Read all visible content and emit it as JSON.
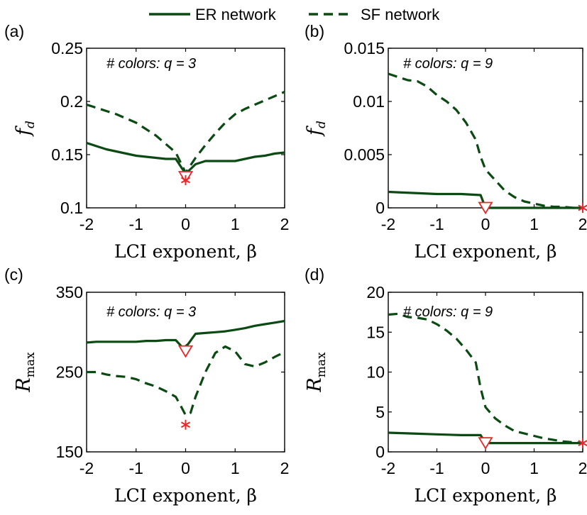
{
  "legend": {
    "er_label": "ER network",
    "sf_label": "SF network",
    "line_color": "#0b4a12",
    "marker_color": "#e8282b"
  },
  "chart_data": [
    {
      "panel": "(a)",
      "type": "line",
      "annotation": "# colors: q = 3",
      "ylabel_main": "f",
      "ylabel_sub": "d",
      "xlabel": "LCI exponent, β",
      "xlim": [
        -2,
        2
      ],
      "ylim": [
        0.1,
        0.25
      ],
      "xticks": [
        -2,
        -1,
        0,
        1,
        2
      ],
      "xtick_labels": [
        "-2",
        "-1",
        "0",
        "1",
        "2"
      ],
      "yticks": [
        0.1,
        0.15,
        0.2,
        0.25
      ],
      "ytick_labels": [
        "0.1",
        "0.15",
        "0.2",
        "0.25"
      ],
      "series": [
        {
          "name": "ER network",
          "style": "solid",
          "x": [
            -2,
            -1.8,
            -1.6,
            -1.4,
            -1.2,
            -1.0,
            -0.8,
            -0.6,
            -0.4,
            -0.2,
            0,
            0.2,
            0.4,
            0.6,
            0.8,
            1.0,
            1.2,
            1.4,
            1.6,
            1.8,
            2.0
          ],
          "y": [
            0.161,
            0.158,
            0.155,
            0.153,
            0.151,
            0.149,
            0.148,
            0.147,
            0.146,
            0.146,
            0.132,
            0.141,
            0.144,
            0.144,
            0.144,
            0.144,
            0.146,
            0.148,
            0.149,
            0.151,
            0.152
          ]
        },
        {
          "name": "SF network",
          "style": "dashed",
          "x": [
            -2,
            -1.8,
            -1.6,
            -1.4,
            -1.2,
            -1.0,
            -0.8,
            -0.6,
            -0.4,
            -0.2,
            0,
            0.2,
            0.4,
            0.6,
            0.8,
            1.0,
            1.2,
            1.4,
            1.6,
            1.8,
            2.0
          ],
          "y": [
            0.197,
            0.194,
            0.191,
            0.188,
            0.184,
            0.18,
            0.174,
            0.168,
            0.16,
            0.152,
            0.133,
            0.147,
            0.159,
            0.17,
            0.18,
            0.188,
            0.193,
            0.197,
            0.201,
            0.205,
            0.209
          ]
        }
      ],
      "markers": [
        {
          "type": "triangle",
          "x": 0,
          "y": 0.129
        },
        {
          "type": "star",
          "x": 0,
          "y": 0.126
        }
      ]
    },
    {
      "panel": "(b)",
      "type": "line",
      "annotation": "# colors: q = 9",
      "ylabel_main": "f",
      "ylabel_sub": "d",
      "xlabel": "LCI exponent, β",
      "xlim": [
        -2,
        2
      ],
      "ylim": [
        0,
        0.015
      ],
      "xticks": [
        -2,
        -1,
        0,
        1,
        2
      ],
      "xtick_labels": [
        "-2",
        "-1",
        "0",
        "1",
        "2"
      ],
      "yticks": [
        0,
        0.005,
        0.01,
        0.015
      ],
      "ytick_labels": [
        "0",
        "0.005",
        "0.01",
        "0.015"
      ],
      "series": [
        {
          "name": "ER network",
          "style": "solid",
          "x": [
            -2,
            -1.5,
            -1.0,
            -0.5,
            -0.1,
            0,
            0.5,
            1.0,
            1.5,
            2.0
          ],
          "y": [
            0.0015,
            0.0014,
            0.0013,
            0.0013,
            0.0012,
            0.0,
            0.0,
            0.0,
            0.0,
            0.0
          ]
        },
        {
          "name": "SF network",
          "style": "dashed",
          "x": [
            -2,
            -1.8,
            -1.6,
            -1.4,
            -1.2,
            -1.0,
            -0.8,
            -0.6,
            -0.4,
            -0.2,
            -0.1,
            0,
            0.2,
            0.4,
            0.6,
            0.8,
            1.0,
            1.2,
            1.4,
            1.6,
            1.8,
            2.0
          ],
          "y": [
            0.0126,
            0.0123,
            0.012,
            0.0119,
            0.0114,
            0.0106,
            0.01,
            0.0092,
            0.008,
            0.0064,
            0.0048,
            0.0036,
            0.0026,
            0.0016,
            0.001,
            0.0006,
            0.0004,
            0.0002,
            0.0001,
            0.0001,
            0.0,
            0.0
          ]
        }
      ],
      "markers": [
        {
          "type": "triangle",
          "x": 0,
          "y": 0.0
        },
        {
          "type": "star",
          "x": 2,
          "y": 0.0
        }
      ]
    },
    {
      "panel": "(c)",
      "type": "line",
      "annotation": "# colors: q = 3",
      "ylabel_main": "R",
      "ylabel_sub": "max",
      "xlabel": "LCI exponent, β",
      "xlim": [
        -2,
        2
      ],
      "ylim": [
        150,
        350
      ],
      "xticks": [
        -2,
        -1,
        0,
        1,
        2
      ],
      "xtick_labels": [
        "-2",
        "-1",
        "0",
        "1",
        "2"
      ],
      "yticks": [
        150,
        250,
        350
      ],
      "ytick_labels": [
        "150",
        "250",
        "350"
      ],
      "series": [
        {
          "name": "ER network",
          "style": "solid",
          "x": [
            -2,
            -1.8,
            -1.6,
            -1.4,
            -1.2,
            -1.0,
            -0.8,
            -0.6,
            -0.4,
            -0.2,
            -0.05,
            0.05,
            0.2,
            0.4,
            0.6,
            0.8,
            1.0,
            1.2,
            1.4,
            1.6,
            1.8,
            2.0
          ],
          "y": [
            287,
            288,
            288,
            288,
            288,
            288,
            289,
            289,
            290,
            290,
            280,
            285,
            298,
            299,
            300,
            301,
            303,
            305,
            308,
            310,
            312,
            314
          ]
        },
        {
          "name": "SF network",
          "style": "dashed",
          "x": [
            -2,
            -1.8,
            -1.6,
            -1.4,
            -1.2,
            -1.0,
            -0.8,
            -0.6,
            -0.4,
            -0.2,
            -0.1,
            0,
            0.1,
            0.2,
            0.4,
            0.6,
            0.8,
            1.0,
            1.2,
            1.4,
            1.6,
            1.8,
            2.0
          ],
          "y": [
            250,
            250,
            247,
            245,
            244,
            241,
            236,
            232,
            226,
            219,
            208,
            196,
            199,
            219,
            250,
            274,
            282,
            276,
            260,
            257,
            262,
            269,
            275
          ]
        }
      ],
      "markers": [
        {
          "type": "triangle",
          "x": 0,
          "y": 276
        },
        {
          "type": "star",
          "x": 0,
          "y": 184
        }
      ]
    },
    {
      "panel": "(d)",
      "type": "line",
      "annotation": "# colors: q = 9",
      "ylabel_main": "R",
      "ylabel_sub": "max",
      "xlabel": "LCI exponent, β",
      "xlim": [
        -2,
        2
      ],
      "ylim": [
        0,
        20
      ],
      "xticks": [
        -2,
        -1,
        0,
        1,
        2
      ],
      "xtick_labels": [
        "-2",
        "-1",
        "0",
        "1",
        "2"
      ],
      "yticks": [
        0,
        5,
        10,
        15,
        20
      ],
      "ytick_labels": [
        "0",
        "5",
        "10",
        "15",
        "20"
      ],
      "series": [
        {
          "name": "ER network",
          "style": "solid",
          "x": [
            -2,
            -1.5,
            -1.0,
            -0.5,
            -0.1,
            0,
            0.5,
            1.0,
            1.5,
            2.0
          ],
          "y": [
            2.4,
            2.3,
            2.2,
            2.1,
            2.1,
            1.1,
            1.1,
            1.1,
            1.1,
            1.1
          ]
        },
        {
          "name": "SF network",
          "style": "dashed",
          "x": [
            -2,
            -1.8,
            -1.6,
            -1.4,
            -1.2,
            -1.0,
            -0.8,
            -0.6,
            -0.4,
            -0.2,
            -0.1,
            0,
            0.2,
            0.4,
            0.6,
            0.8,
            1.0,
            1.2,
            1.4,
            1.6,
            1.8,
            2.0
          ],
          "y": [
            17.2,
            17.3,
            16.9,
            16.8,
            16.6,
            16.0,
            15.2,
            14.2,
            12.8,
            11.2,
            8.0,
            5.6,
            4.2,
            3.3,
            2.6,
            2.3,
            2.0,
            1.7,
            1.5,
            1.3,
            1.2,
            1.1
          ]
        }
      ],
      "markers": [
        {
          "type": "triangle",
          "x": 0,
          "y": 1.1
        },
        {
          "type": "star",
          "x": 2,
          "y": 1.1
        }
      ]
    }
  ]
}
